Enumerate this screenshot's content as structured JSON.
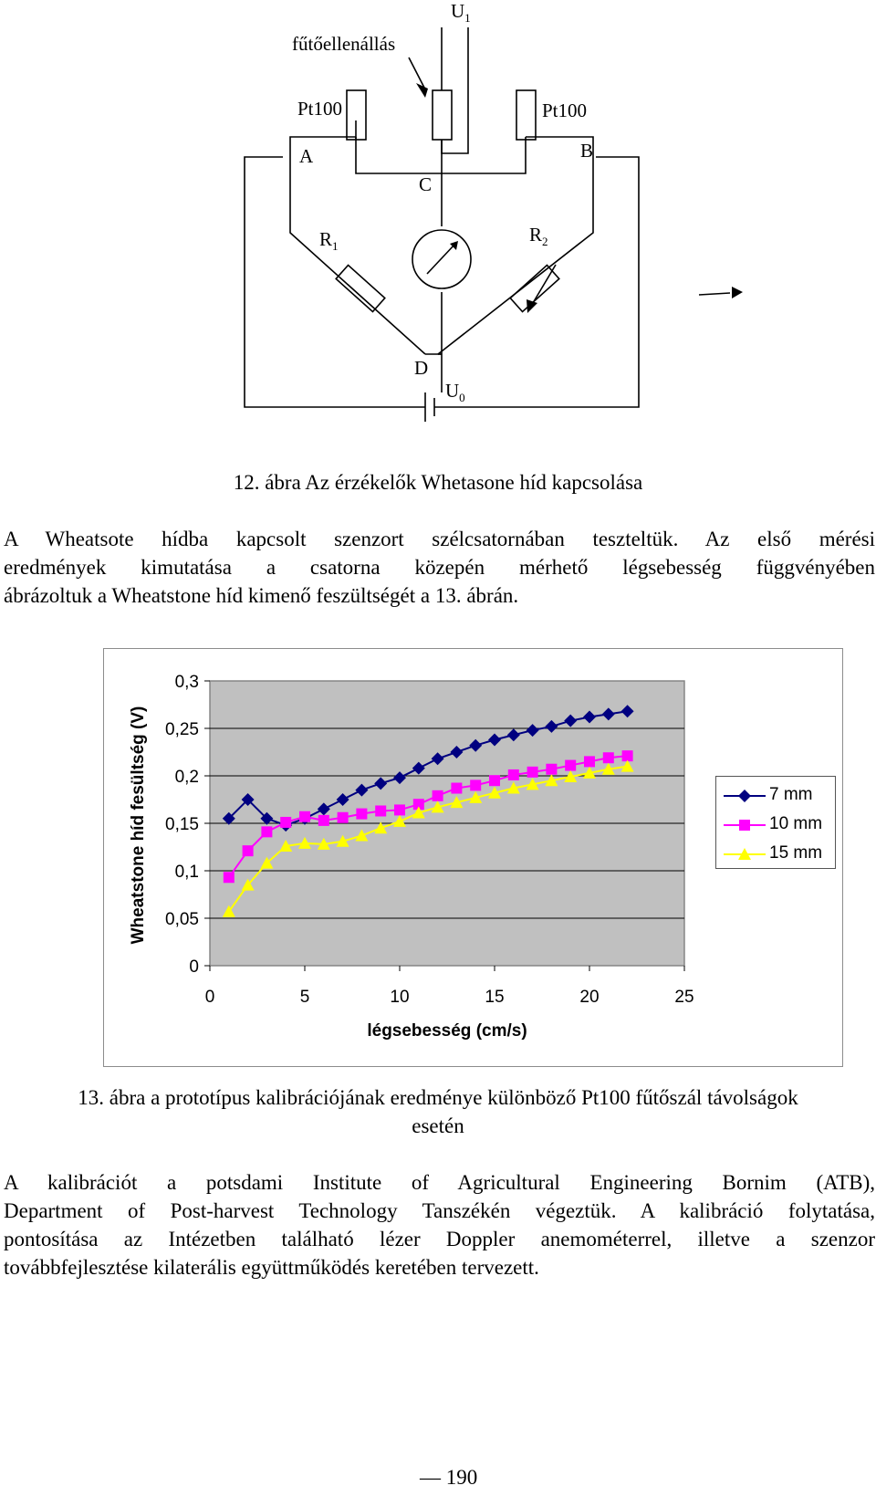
{
  "circuit": {
    "label_heater": "fűtőellenállás",
    "label_u1": "U",
    "label_u1_sub": "1",
    "label_pt100_left": "Pt100",
    "label_pt100_right": "Pt100",
    "label_a": "A",
    "label_b": "B",
    "label_c": "C",
    "label_d": "D",
    "label_r1": "R",
    "label_r1_sub": "1",
    "label_r2": "R",
    "label_r2_sub": "2",
    "label_u0": "U",
    "label_u0_sub": "0"
  },
  "figure12_caption": "12. ábra Az érzékelők Whetasone híd kapcsolása",
  "paragraph1": {
    "lines": [
      "A Wheatsote hídba kapcsolt szenzort szélcsatornában teszteltük. Az első mérési",
      "eredmények kimutatása a csatorna közepén mérhető légsebesség függvényében",
      "ábrázoltuk a Wheatstone híd kimenő feszültségét a 13. ábrán."
    ]
  },
  "chart_data": {
    "type": "line",
    "title": "",
    "xlabel": "légsebesség (cm/s)",
    "ylabel": "Wheatstone híd fesültség (V)",
    "xlim": [
      0,
      25
    ],
    "ylim": [
      0,
      0.3
    ],
    "x_ticks": [
      "0",
      "5",
      "10",
      "15",
      "20",
      "25"
    ],
    "y_ticks": [
      "0",
      "0,05",
      "0,1",
      "0,15",
      "0,2",
      "0,25",
      "0,3"
    ],
    "legend_position": "right",
    "series": [
      {
        "name": "7 mm",
        "color": "#000080",
        "marker": "diamond",
        "x": [
          1,
          2,
          3,
          4,
          5,
          6,
          7,
          8,
          9,
          10,
          11,
          12,
          13,
          14,
          15,
          16,
          17,
          18,
          19,
          20,
          21,
          22
        ],
        "y": [
          0.155,
          0.175,
          0.155,
          0.148,
          0.155,
          0.165,
          0.175,
          0.185,
          0.192,
          0.198,
          0.208,
          0.218,
          0.225,
          0.232,
          0.238,
          0.243,
          0.248,
          0.252,
          0.258,
          0.262,
          0.265,
          0.268
        ]
      },
      {
        "name": "10 mm",
        "color": "#ff00ff",
        "marker": "square",
        "x": [
          1,
          2,
          3,
          4,
          5,
          6,
          7,
          8,
          9,
          10,
          11,
          12,
          13,
          14,
          15,
          16,
          17,
          18,
          19,
          20,
          21,
          22
        ],
        "y": [
          0.093,
          0.121,
          0.141,
          0.151,
          0.157,
          0.153,
          0.156,
          0.16,
          0.163,
          0.164,
          0.17,
          0.179,
          0.187,
          0.19,
          0.195,
          0.201,
          0.204,
          0.207,
          0.211,
          0.215,
          0.219,
          0.221
        ]
      },
      {
        "name": "15 mm",
        "color": "#ffff00",
        "marker": "triangle",
        "x": [
          1,
          2,
          3,
          4,
          5,
          6,
          7,
          8,
          9,
          10,
          11,
          12,
          13,
          14,
          15,
          16,
          17,
          18,
          19,
          20,
          21,
          22
        ],
        "y": [
          0.057,
          0.085,
          0.108,
          0.126,
          0.129,
          0.128,
          0.131,
          0.137,
          0.145,
          0.152,
          0.161,
          0.167,
          0.172,
          0.177,
          0.182,
          0.187,
          0.191,
          0.195,
          0.199,
          0.203,
          0.207,
          0.21
        ]
      }
    ]
  },
  "figure13_caption": {
    "line1": "13. ábra a prototípus kalibrációjának eredménye különböző Pt100 fűtőszál távolságok",
    "line2": "esetén"
  },
  "paragraph2": {
    "lines": [
      "A kalibrációt a potsdami Institute of Agricultural Engineering Bornim (ATB),",
      "Department of Post-harvest Technology Tanszékén végeztük. A kalibráció folytatása,",
      "pontosítása az Intézetben található lézer Doppler anemométerrel, illetve a szenzor",
      "továbbfejlesztése kilaterális együttműködés keretében tervezett."
    ]
  },
  "page_number": "190",
  "page_number_prefix": "—"
}
